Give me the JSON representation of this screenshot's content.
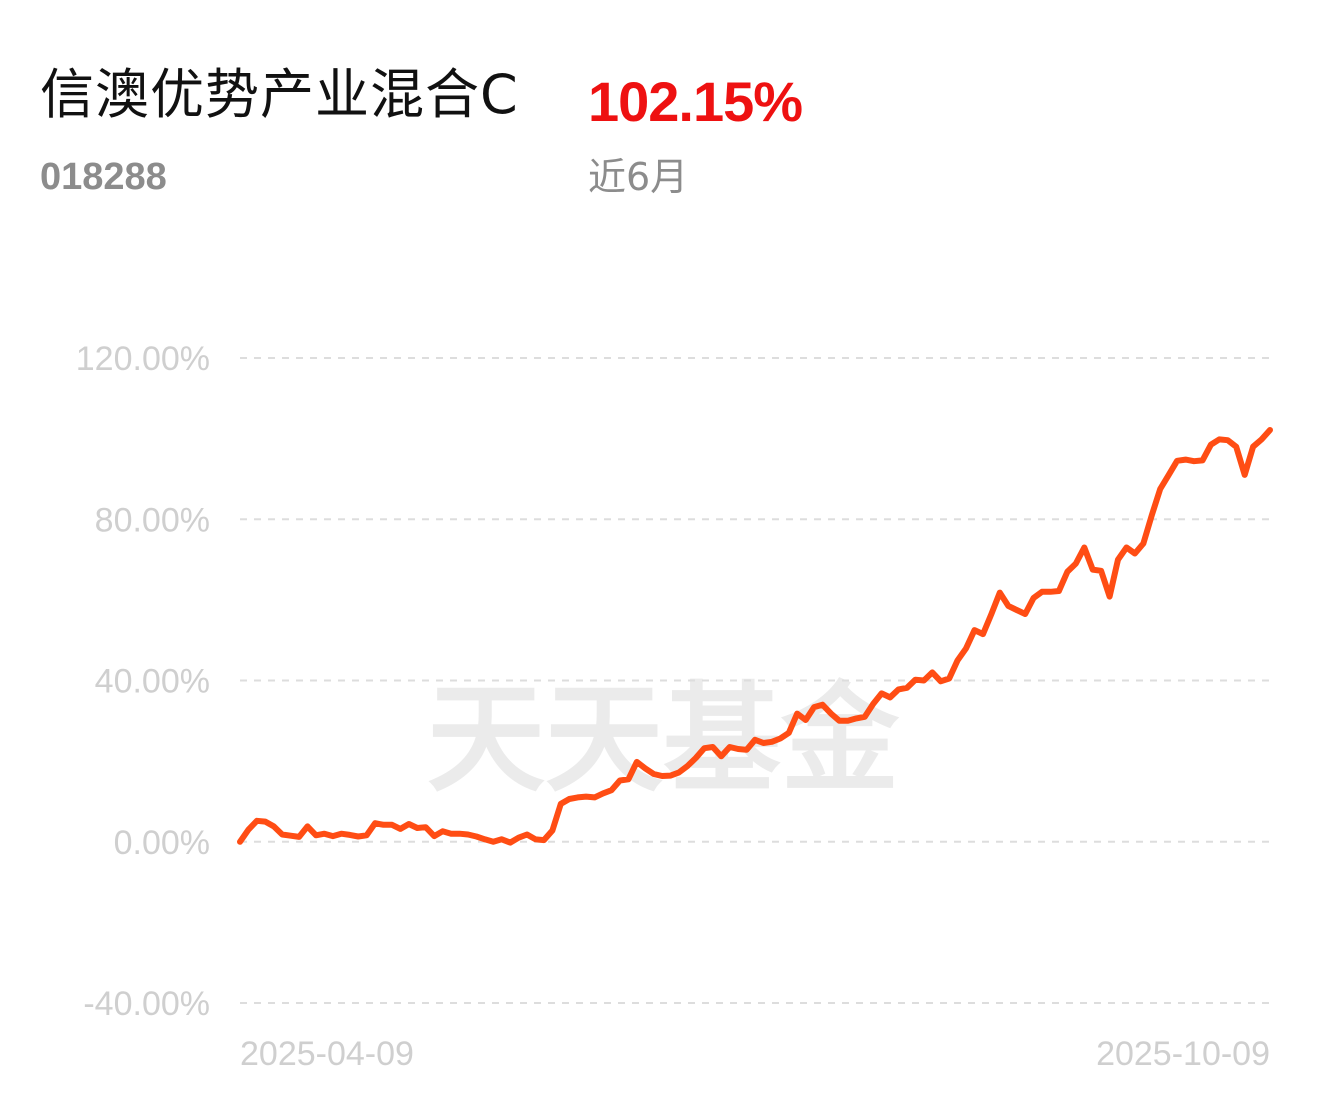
{
  "header": {
    "fund_name": "信澳优势产业混合C",
    "fund_code": "018288",
    "return_value": "102.15%",
    "return_period": "近6月"
  },
  "watermark": "天天基金",
  "colors": {
    "line": "#ff4d14",
    "return_positive": "#ee1111",
    "grid": "#dddddd",
    "tick_text": "#cfcfcf"
  },
  "chart_data": {
    "type": "line",
    "title": "",
    "xlabel": "",
    "ylabel": "",
    "ylim": [
      -40,
      120
    ],
    "y_ticks": [
      120,
      80,
      40,
      0,
      -40
    ],
    "y_tick_labels": [
      "120.00%",
      "80.00%",
      "40.00%",
      "0.00%",
      "-40.00%"
    ],
    "x_tick_labels": [
      "2025-04-09",
      "2025-10-09"
    ],
    "grid": "horizontal-dashed",
    "x_range": [
      "2025-04-09",
      "2025-10-09"
    ],
    "series": [
      {
        "values": [
          0.0,
          3.0,
          5.2,
          5.0,
          3.8,
          1.8,
          1.5,
          1.2,
          3.8,
          1.6,
          2.0,
          1.4,
          2.0,
          1.7,
          1.3,
          1.6,
          4.6,
          4.2,
          4.2,
          3.2,
          4.4,
          3.4,
          3.6,
          1.4,
          2.6,
          2.0,
          2.0,
          1.8,
          1.3,
          0.6,
          0.0,
          0.6,
          -0.2,
          1.0,
          1.8,
          0.6,
          0.4,
          2.8,
          9.4,
          10.6,
          11.0,
          11.2,
          11.0,
          12.0,
          12.8,
          15.2,
          15.5,
          19.8,
          18.2,
          16.8,
          16.3,
          16.4,
          17.2,
          18.8,
          20.8,
          23.2,
          23.5,
          21.2,
          23.5,
          23.0,
          22.8,
          25.3,
          24.5,
          24.8,
          25.6,
          27.0,
          31.8,
          30.2,
          33.4,
          34.0,
          31.8,
          30.0,
          30.0,
          30.6,
          31.0,
          34.2,
          36.8,
          35.8,
          37.8,
          38.2,
          40.2,
          40.0,
          42.0,
          39.8,
          40.5,
          45.0,
          48.0,
          52.5,
          51.5,
          56.5,
          61.8,
          58.5,
          57.5,
          56.5,
          60.5,
          62.0,
          62.0,
          62.2,
          67.0,
          69.0,
          73.0,
          67.5,
          67.2,
          60.8,
          70.0,
          73.0,
          71.5,
          74.0,
          81.0,
          87.5,
          91.0,
          94.5,
          94.8,
          94.4,
          94.6,
          98.5,
          99.8,
          99.6,
          98.0,
          91.0,
          98.0,
          99.8,
          102.15
        ]
      }
    ]
  }
}
